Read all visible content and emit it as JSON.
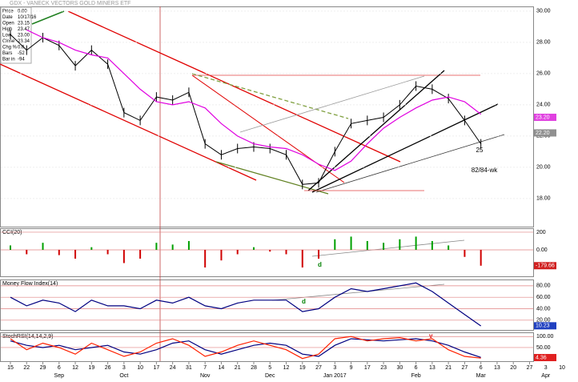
{
  "chart_data": [
    {
      "type": "line",
      "title": "GDX - VANECK VECTORS GOLD MINERS ETF",
      "info": [
        [
          "Price",
          "0.00"
        ],
        [
          "Date",
          "10/17/16"
        ],
        [
          "Open",
          "23.15"
        ],
        [
          "High",
          "23.47"
        ],
        [
          "Low",
          "23.00"
        ],
        [
          "Close",
          "23.34"
        ],
        [
          "Chg %",
          "0.0"
        ],
        [
          "Bars",
          "-52"
        ],
        [
          "Bar in",
          "-94"
        ]
      ],
      "categories": [
        "15",
        "22",
        "29",
        "6",
        "12",
        "19",
        "26",
        "3",
        "10",
        "17",
        "24",
        "31",
        "7",
        "14",
        "21",
        "28",
        "5",
        "12",
        "19",
        "27",
        "3",
        "9",
        "17",
        "23",
        "30",
        "6",
        "13",
        "21",
        "27",
        "6",
        "13",
        "20",
        "27",
        "3",
        "10"
      ],
      "month_labels": [
        null,
        null,
        null,
        "Sep",
        null,
        null,
        null,
        "Oct",
        null,
        null,
        null,
        null,
        "Nov",
        null,
        null,
        null,
        "Dec",
        null,
        null,
        null,
        "Jan 2017",
        null,
        null,
        null,
        null,
        "Feb",
        null,
        null,
        null,
        "Mar",
        null,
        null,
        null,
        "Apr",
        null
      ],
      "series": [
        {
          "color": "#000000",
          "values": [
            28.5,
            27.5,
            28.3,
            27.8,
            26.5,
            27.5,
            26.6,
            23.5,
            23.0,
            24.5,
            24.3,
            24.8,
            21.5,
            20.8,
            21.2,
            21.3,
            21.2,
            20.8,
            18.9,
            19.0,
            21.0,
            22.8,
            23.0,
            23.2,
            24.0,
            25.2,
            25.0,
            24.4,
            23.0,
            21.5,
            null,
            null,
            null,
            null,
            null
          ]
        },
        {
          "color": "#e000e0",
          "values": [
            null,
            28.8,
            28.3,
            28.0,
            27.5,
            27.2,
            27.0,
            26.0,
            25.0,
            24.2,
            24.0,
            24.2,
            23.8,
            22.8,
            22.0,
            21.5,
            21.3,
            21.2,
            20.8,
            20.2,
            19.8,
            20.4,
            21.5,
            22.5,
            23.2,
            23.8,
            24.3,
            24.5,
            24.2,
            23.4,
            null,
            null,
            null,
            null,
            null
          ]
        }
      ],
      "ylim": [
        16.2,
        30.3
      ],
      "yticks": [
        {
          "value": 18,
          "label": "18.00"
        },
        {
          "value": 20,
          "label": "20.00"
        },
        {
          "value": 22,
          "label": "22.00"
        },
        {
          "value": 24,
          "label": "24.00"
        },
        {
          "value": 26,
          "label": "26.00"
        },
        {
          "value": 28,
          "label": "28.00"
        },
        {
          "value": 30,
          "label": "30.00"
        }
      ],
      "grid": true,
      "last_labels": [
        {
          "value": 23.2,
          "label": "23.20",
          "color": "#e040e0"
        },
        {
          "value": 22.2,
          "label": "22.20",
          "color": "#909090"
        }
      ],
      "annotations": [
        "25",
        "82/84-wk"
      ]
    },
    {
      "type": "bar",
      "title": "CCI(20)",
      "values": [
        50,
        -50,
        80,
        -60,
        -100,
        30,
        -50,
        -150,
        -100,
        80,
        60,
        100,
        -200,
        -120,
        -50,
        30,
        -20,
        -50,
        -200,
        -100,
        120,
        150,
        100,
        80,
        120,
        150,
        100,
        50,
        -80,
        -180,
        null,
        null,
        null,
        null,
        null
      ],
      "up_color": "#00a000",
      "down_color": "#d00000",
      "ylim": [
        -300,
        245
      ],
      "yticks": [
        {
          "value": 0,
          "label": "0.00"
        },
        200
      ],
      "grid": true,
      "last_labels": [
        {
          "value": -179.66,
          "label": "-179.66",
          "color": "#d02020"
        }
      ],
      "annotations": [
        "d"
      ]
    },
    {
      "type": "line",
      "title": "Money Flow Index(14)",
      "series": [
        {
          "color": "#000080",
          "values": [
            60,
            45,
            55,
            50,
            35,
            55,
            45,
            45,
            40,
            55,
            50,
            60,
            45,
            40,
            50,
            55,
            55,
            55,
            35,
            40,
            60,
            75,
            70,
            75,
            80,
            85,
            70,
            50,
            30,
            10,
            null,
            null,
            null,
            null,
            null
          ]
        }
      ],
      "ylim": [
        3,
        91
      ],
      "yticks": [
        {
          "value": 20,
          "label": "20.00"
        },
        {
          "value": 40,
          "label": "40.00"
        },
        {
          "value": 60,
          "label": "60.00"
        },
        {
          "value": 80,
          "label": "80.00"
        }
      ],
      "grid": true,
      "last_labels": [
        {
          "value": 10.23,
          "label": "10.23",
          "color": "#2040c0"
        }
      ],
      "annotations": [
        "d"
      ]
    },
    {
      "type": "line",
      "title": "StochRSI(14,14,2,9)",
      "series": [
        {
          "color": "#000080",
          "values": [
            80,
            60,
            50,
            60,
            40,
            50,
            60,
            30,
            20,
            40,
            70,
            80,
            40,
            20,
            40,
            60,
            70,
            60,
            20,
            10,
            60,
            90,
            85,
            80,
            85,
            90,
            80,
            60,
            30,
            5,
            null,
            null,
            null,
            null,
            null
          ]
        },
        {
          "color": "#ff2000",
          "values": [
            90,
            40,
            70,
            50,
            20,
            70,
            40,
            10,
            30,
            70,
            90,
            60,
            10,
            30,
            60,
            80,
            60,
            40,
            0,
            20,
            90,
            100,
            80,
            90,
            95,
            80,
            90,
            40,
            10,
            2,
            null,
            null,
            null,
            null,
            null
          ]
        }
      ],
      "ylim": [
        -12,
        119
      ],
      "yticks": [
        {
          "value": 50,
          "label": "50.00"
        },
        {
          "value": 100,
          "label": "100.00"
        }
      ],
      "grid": true,
      "last_labels": [
        {
          "value": 4.36,
          "label": "4.36",
          "color": "#e02020"
        }
      ],
      "annotations": [
        "v"
      ]
    }
  ]
}
